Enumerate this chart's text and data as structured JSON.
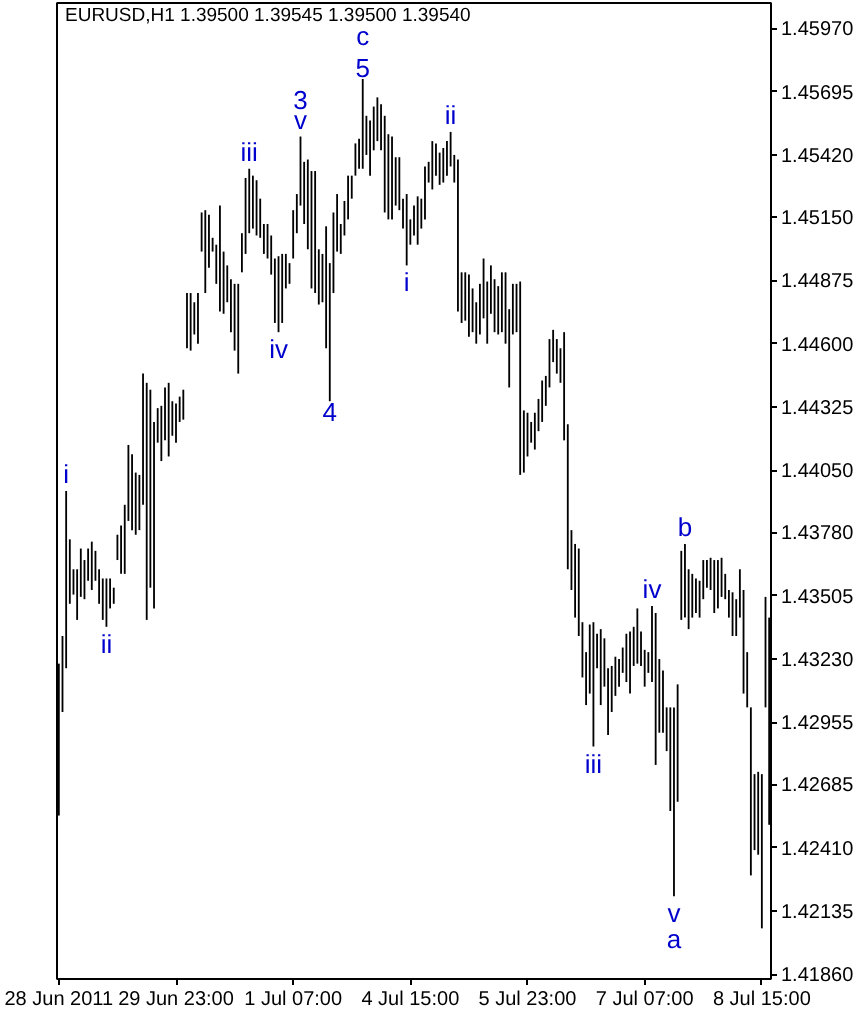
{
  "chart_data": {
    "type": "bar",
    "title": "EURUSD,H1 1.39500 1.39545 1.39500 1.39540",
    "color": "#000000",
    "categories": [
      "28 Jun 2011",
      null,
      null,
      null,
      null,
      null,
      null,
      null,
      null,
      null,
      null,
      null,
      null,
      null,
      null,
      null,
      null,
      null,
      null,
      null,
      null,
      null,
      null,
      null,
      null,
      null,
      null,
      null,
      null,
      null,
      null,
      null,
      "29 Jun 23:00",
      null,
      null,
      null,
      null,
      null,
      null,
      null,
      null,
      null,
      null,
      null,
      null,
      null,
      null,
      null,
      null,
      null,
      null,
      null,
      null,
      null,
      null,
      null,
      null,
      null,
      null,
      null,
      null,
      null,
      null,
      null,
      "1 Jul 07:00",
      null,
      null,
      null,
      null,
      null,
      null,
      null,
      null,
      null,
      null,
      null,
      null,
      null,
      null,
      null,
      null,
      null,
      null,
      null,
      null,
      null,
      null,
      null,
      null,
      null,
      null,
      null,
      null,
      null,
      null,
      null,
      "4 Jul 15:00",
      null,
      null,
      null,
      null,
      null,
      null,
      null,
      null,
      null,
      null,
      null,
      null,
      null,
      null,
      null,
      null,
      null,
      null,
      null,
      null,
      null,
      null,
      null,
      null,
      null,
      null,
      null,
      null,
      null,
      null,
      null,
      "5 Jul 23:00",
      null,
      null,
      null,
      null,
      null,
      null,
      null,
      null,
      null,
      null,
      null,
      null,
      null,
      null,
      null,
      null,
      null,
      null,
      null,
      null,
      null,
      null,
      null,
      null,
      null,
      null,
      null,
      null,
      null,
      null,
      null,
      "7 Jul 07:00",
      null,
      null,
      null,
      null,
      null,
      null,
      null,
      null,
      null,
      null,
      null,
      null,
      null,
      null,
      null,
      null,
      null,
      null,
      null,
      null,
      null,
      null,
      null,
      null,
      null,
      null,
      null,
      null,
      null,
      null,
      null,
      "8 Jul 15:00",
      null,
      null
    ],
    "base": [
      1.4255,
      1.43,
      1.4319,
      1.4347,
      1.4351,
      1.434,
      1.435,
      1.4349,
      1.4357,
      1.4353,
      1.4357,
      1.4347,
      1.434,
      1.4337,
      1.4345,
      1.4347,
      1.4366,
      1.436,
      1.436,
      1.4383,
      1.4379,
      1.4377,
      1.4379,
      1.439,
      1.434,
      1.4354,
      1.4345,
      1.4417,
      1.4409,
      1.4418,
      1.4411,
      1.442,
      1.4417,
      1.4426,
      1.4427,
      1.4458,
      1.4457,
      1.4464,
      1.446,
      1.45,
      1.4482,
      1.4493,
      1.45,
      1.4486,
      1.4474,
      1.4473,
      1.4478,
      1.4465,
      1.4457,
      1.4447,
      1.4491,
      1.4499,
      1.4508,
      1.451,
      1.4507,
      1.4506,
      1.4499,
      1.4497,
      1.449,
      1.4469,
      1.4465,
      1.4469,
      1.4484,
      1.4486,
      1.4497,
      1.4508,
      1.452,
      1.4512,
      1.4501,
      1.4484,
      1.4482,
      1.4477,
      1.4478,
      1.4458,
      1.4435,
      1.4482,
      1.45,
      1.4499,
      1.4507,
      1.4514,
      1.4523,
      1.4533,
      1.4536,
      1.4536,
      1.4542,
      1.4533,
      1.4544,
      1.4548,
      1.4544,
      1.4517,
      1.4514,
      1.4514,
      1.452,
      1.4518,
      1.451,
      1.4494,
      1.4503,
      1.4507,
      1.4503,
      1.451,
      1.4514,
      1.453,
      1.4527,
      1.4533,
      1.4529,
      1.453,
      1.4533,
      1.4537,
      1.453,
      1.4474,
      1.4469,
      1.447,
      1.4463,
      1.4465,
      1.446,
      1.4464,
      1.4471,
      1.446,
      1.4473,
      1.4465,
      1.4464,
      1.4465,
      1.446,
      1.4441,
      1.4464,
      1.4465,
      1.4403,
      1.4404,
      1.4411,
      1.4417,
      1.4414,
      1.4422,
      1.4426,
      1.4433,
      1.4441,
      1.4452,
      1.4447,
      1.4443,
      1.4418,
      1.4362,
      1.4353,
      1.4341,
      1.4333,
      1.4315,
      1.4303,
      1.4308,
      1.4285,
      1.4319,
      1.4303,
      1.4311,
      1.429,
      1.43,
      1.4307,
      1.4311,
      1.4317,
      1.4313,
      1.4308,
      1.432,
      1.4321,
      1.432,
      1.4311,
      1.4317,
      1.4313,
      1.4277,
      1.4291,
      1.4291,
      1.4283,
      1.4257,
      1.422,
      1.4261,
      1.434,
      1.4341,
      1.4336,
      1.4341,
      1.4343,
      1.4341,
      1.4349,
      1.4354,
      1.4353,
      1.4343,
      1.4345,
      1.435,
      1.4349,
      1.4341,
      1.4333,
      1.4333,
      1.4341,
      1.4308,
      1.4302,
      1.4229,
      1.424,
      1.4238,
      1.4206,
      1.4302,
      1.4251
    ],
    "values": [
      0.0066,
      0.0033,
      0.0077,
      0.0028,
      0.0011,
      0.0022,
      0.0021,
      0.0017,
      0.0014,
      0.0021,
      0.0013,
      0.0015,
      0.0018,
      0.0021,
      0.0013,
      0.0007,
      0.0011,
      0.0021,
      0.003,
      0.0033,
      0.0033,
      0.0027,
      0.0024,
      0.0057,
      0.0103,
      0.0086,
      0.0081,
      0.0015,
      0.0024,
      0.0023,
      0.0032,
      0.0015,
      0.0017,
      0.0011,
      0.0013,
      0.0024,
      0.0025,
      0.0014,
      0.0022,
      0.0017,
      0.0036,
      0.0023,
      0.0006,
      0.0017,
      0.0046,
      0.0027,
      0.0016,
      0.0023,
      0.0029,
      0.0039,
      0.0017,
      0.0033,
      0.0028,
      0.0023,
      0.0024,
      0.0017,
      0.0013,
      0.0015,
      0.0017,
      0.0028,
      0.0033,
      0.003,
      0.0015,
      0.0009,
      0.0021,
      0.0017,
      0.003,
      0.0027,
      0.0039,
      0.0051,
      0.0053,
      0.0024,
      0.0021,
      0.0053,
      0.006,
      0.0035,
      0.0025,
      0.0013,
      0.0015,
      0.0019,
      0.001,
      0.0014,
      0.0013,
      0.0039,
      0.0017,
      0.0024,
      0.0019,
      0.0019,
      0.002,
      0.0042,
      0.0037,
      0.0036,
      0.0021,
      0.0023,
      0.0013,
      0.0031,
      0.0011,
      0.0013,
      0.0021,
      0.0013,
      0.0023,
      0.0009,
      0.0021,
      0.0014,
      0.0014,
      0.0015,
      0.0015,
      0.0015,
      0.0012,
      0.0066,
      0.0022,
      0.0021,
      0.0027,
      0.0019,
      0.0018,
      0.0022,
      0.0026,
      0.0027,
      0.0021,
      0.0023,
      0.0021,
      0.0026,
      0.0031,
      0.0034,
      0.0022,
      0.0021,
      0.0084,
      0.0027,
      0.0019,
      0.0009,
      0.0016,
      0.0014,
      0.0018,
      0.0013,
      0.0021,
      0.0014,
      0.0015,
      0.0015,
      0.0047,
      0.0063,
      0.0026,
      0.0032,
      0.0038,
      0.0024,
      0.0023,
      0.003,
      0.0054,
      0.0015,
      0.0033,
      0.0021,
      0.0029,
      0.002,
      0.0017,
      0.0012,
      0.0011,
      0.0021,
      0.0027,
      0.0017,
      0.0024,
      0.0015,
      0.0016,
      0.0009,
      0.0033,
      0.0066,
      0.0032,
      0.0027,
      0.0019,
      0.0045,
      0.0082,
      0.0051,
      0.003,
      0.0032,
      0.0026,
      0.0019,
      0.0015,
      0.0016,
      0.0017,
      0.0012,
      0.0014,
      0.0023,
      0.0021,
      0.0017,
      0.0011,
      0.0012,
      0.0019,
      0.0016,
      0.0021,
      0.0045,
      0.0024,
      0.0073,
      0.0033,
      0.0036,
      0.0067,
      0.0048,
      0.009
    ],
    "ylim": [
      1.4184,
      1.4608
    ],
    "yticks": [
      {
        "value": 1.4597,
        "label": "1.45970"
      },
      {
        "value": 1.45695,
        "label": "1.45695"
      },
      {
        "value": 1.4542,
        "label": "1.45420"
      },
      {
        "value": 1.4515,
        "label": "1.45150"
      },
      {
        "value": 1.44875,
        "label": "1.44875"
      },
      {
        "value": 1.446,
        "label": "1.44600"
      },
      {
        "value": 1.44325,
        "label": "1.44325"
      },
      {
        "value": 1.4405,
        "label": "1.44050"
      },
      {
        "value": 1.4378,
        "label": "1.43780"
      },
      {
        "value": 1.43505,
        "label": "1.43505"
      },
      {
        "value": 1.4323,
        "label": "1.43230"
      },
      {
        "value": 1.42955,
        "label": "1.42955"
      },
      {
        "value": 1.42685,
        "label": "1.42685"
      },
      {
        "value": 1.4241,
        "label": "1.42410"
      },
      {
        "value": 1.42135,
        "label": "1.42135"
      },
      {
        "value": 1.4186,
        "label": "1.41860"
      }
    ],
    "annotations": [
      {
        "text": "i",
        "y": 1.4396
      },
      {
        "text": "ii",
        "y": 1.4337
      },
      {
        "text": "iii",
        "y": 1.4536
      },
      {
        "text": "iv",
        "y": 1.4465
      },
      {
        "text": "v",
        "y": 1.455
      },
      {
        "text": "3",
        "y": 1.455
      },
      {
        "text": "4",
        "y": 1.4435
      },
      {
        "text": "5",
        "y": 1.4575
      },
      {
        "text": "c",
        "y": 1.4575
      },
      {
        "text": "i",
        "y": 1.4494
      },
      {
        "text": "ii",
        "y": 1.4552
      },
      {
        "text": "iii",
        "y": 1.4285
      },
      {
        "text": "iv",
        "y": 1.4346
      },
      {
        "text": "b",
        "y": 1.4373
      },
      {
        "text": "v",
        "y": 1.422
      },
      {
        "text": "a",
        "y": 1.422
      }
    ]
  }
}
